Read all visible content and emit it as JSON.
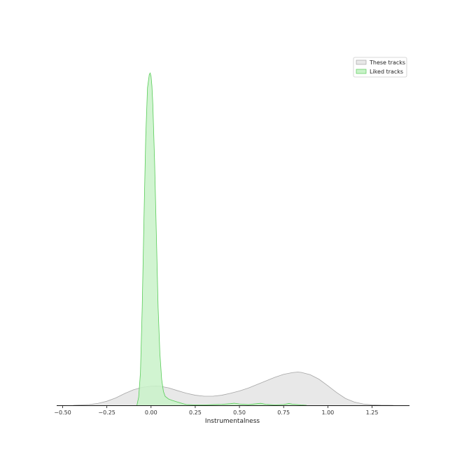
{
  "chart_data": {
    "type": "area",
    "title": "",
    "xlabel": "Instrumentalness",
    "ylabel": "",
    "xlim": [
      -0.53,
      1.47
    ],
    "ylim": [
      0,
      20.5
    ],
    "xticks": [
      -0.5,
      -0.25,
      0.0,
      0.25,
      0.5,
      0.75,
      1.0,
      1.25
    ],
    "xtick_labels": [
      "−0.50",
      "−0.25",
      "0.00",
      "0.25",
      "0.50",
      "0.75",
      "1.00",
      "1.25"
    ],
    "grid": false,
    "legend_position": "upper right",
    "series": [
      {
        "name": "These tracks",
        "fill_color": "#e8e8e8",
        "line_color": "#a6a6a6",
        "x": [
          -0.44,
          -0.4,
          -0.35,
          -0.3,
          -0.25,
          -0.2,
          -0.15,
          -0.1,
          -0.05,
          0.0,
          0.03,
          0.05,
          0.1,
          0.15,
          0.2,
          0.25,
          0.3,
          0.35,
          0.4,
          0.45,
          0.5,
          0.55,
          0.6,
          0.65,
          0.7,
          0.75,
          0.8,
          0.83,
          0.85,
          0.9,
          0.95,
          1.0,
          1.05,
          1.1,
          1.15,
          1.2,
          1.25,
          1.3,
          1.37
        ],
        "values": [
          0.0,
          0.02,
          0.05,
          0.12,
          0.25,
          0.45,
          0.72,
          0.95,
          1.1,
          1.17,
          1.18,
          1.17,
          1.07,
          0.9,
          0.74,
          0.62,
          0.56,
          0.56,
          0.62,
          0.74,
          0.88,
          1.06,
          1.28,
          1.5,
          1.72,
          1.9,
          2.01,
          2.04,
          2.02,
          1.88,
          1.6,
          1.2,
          0.78,
          0.42,
          0.2,
          0.08,
          0.03,
          0.01,
          0.0
        ]
      },
      {
        "name": "Liked tracks",
        "fill_color": "#c9f2c9",
        "line_color": "#57cc57",
        "x": [
          -0.08,
          -0.07,
          -0.06,
          -0.05,
          -0.04,
          -0.03,
          -0.02,
          -0.01,
          -0.005,
          0.0,
          0.005,
          0.01,
          0.02,
          0.03,
          0.04,
          0.05,
          0.06,
          0.07,
          0.08,
          0.1,
          0.12,
          0.15,
          0.18,
          0.2,
          0.25,
          0.3,
          0.35,
          0.4,
          0.45,
          0.47,
          0.5,
          0.55,
          0.6,
          0.62,
          0.65,
          0.7,
          0.75,
          0.78,
          0.8,
          0.85,
          0.88
        ],
        "values": [
          0.0,
          0.5,
          2.0,
          6.0,
          11.5,
          16.5,
          19.5,
          20.3,
          20.4,
          20.2,
          19.6,
          18.5,
          15.0,
          10.5,
          6.0,
          3.2,
          1.6,
          0.85,
          0.55,
          0.38,
          0.3,
          0.2,
          0.1,
          0.05,
          0.02,
          0.02,
          0.04,
          0.06,
          0.1,
          0.13,
          0.08,
          0.04,
          0.1,
          0.12,
          0.06,
          0.02,
          0.05,
          0.11,
          0.07,
          0.02,
          0.0
        ]
      }
    ]
  }
}
